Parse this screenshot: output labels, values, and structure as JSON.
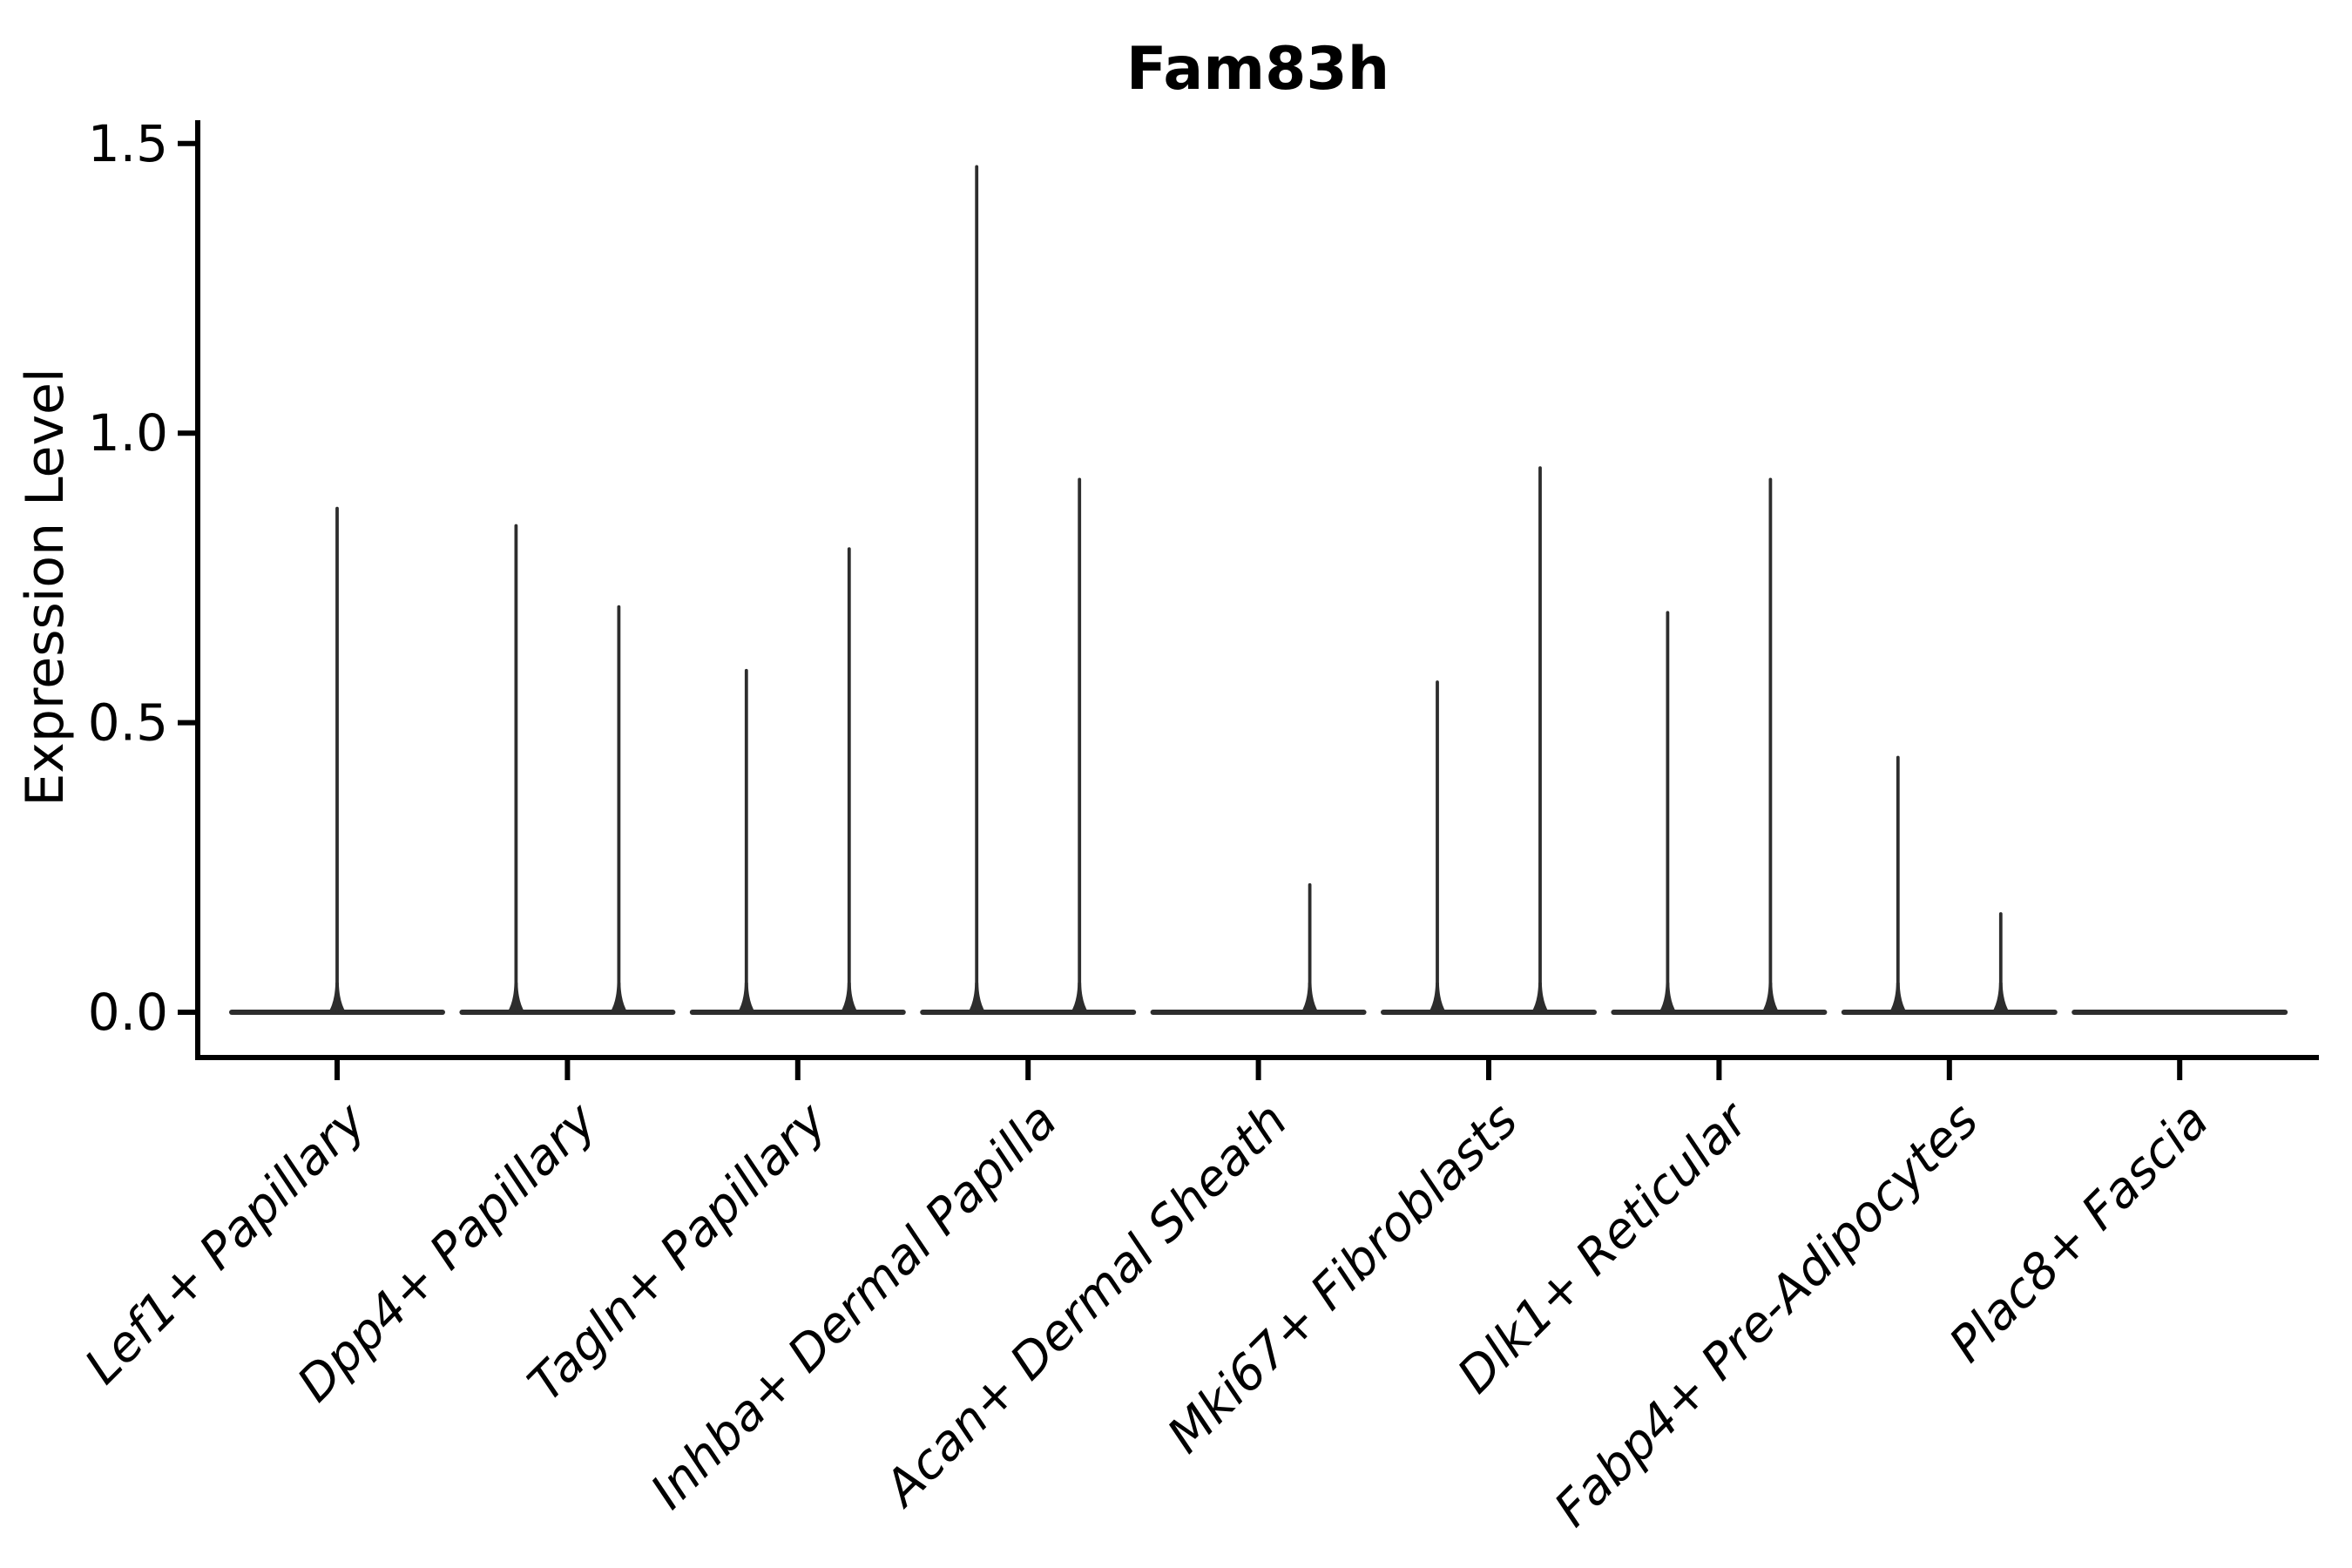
{
  "chart_data": {
    "type": "violin",
    "title": "Fam83h",
    "xlabel": "",
    "ylabel": "Expression Level",
    "ylim": [
      0,
      1.5
    ],
    "yticks": [
      "0.0",
      "0.5",
      "1.0",
      "1.5"
    ],
    "ytick_values": [
      0.0,
      0.5,
      1.0,
      1.5
    ],
    "grid": false,
    "legend": null,
    "shape_note": "Each violin is collapsed at 0: a wide flat base on the zero line with thin vertical spike(s) rising to the maximum expression value.",
    "categories": [
      "Lef1+ Papillary",
      "Dpp4+ Papillary",
      "Tagln+ Papillary",
      "Inhba+ Dermal Papilla",
      "Acan+ Dermal Sheath",
      "Mki67+ Fibroblasts",
      "Dlk1+ Reticular",
      "Fabp4+ Pre-Adipocytes",
      "Plac8+ Fascia"
    ],
    "violins": [
      {
        "category": "Lef1+ Papillary",
        "spikes": [
          {
            "slot": "center",
            "max": 0.87
          }
        ]
      },
      {
        "category": "Dpp4+ Papillary",
        "spikes": [
          {
            "slot": "left",
            "max": 0.84
          },
          {
            "slot": "right",
            "max": 0.7
          }
        ]
      },
      {
        "category": "Tagln+ Papillary",
        "spikes": [
          {
            "slot": "left",
            "max": 0.59
          },
          {
            "slot": "right",
            "max": 0.8
          }
        ]
      },
      {
        "category": "Inhba+ Dermal Papilla",
        "spikes": [
          {
            "slot": "left",
            "max": 1.46
          },
          {
            "slot": "right",
            "max": 0.92
          }
        ]
      },
      {
        "category": "Acan+ Dermal Sheath",
        "spikes": [
          {
            "slot": "right",
            "max": 0.22
          }
        ]
      },
      {
        "category": "Mki67+ Fibroblasts",
        "spikes": [
          {
            "slot": "left",
            "max": 0.57
          },
          {
            "slot": "right",
            "max": 0.94
          }
        ]
      },
      {
        "category": "Dlk1+ Reticular",
        "spikes": [
          {
            "slot": "left",
            "max": 0.69
          },
          {
            "slot": "right",
            "max": 0.92
          }
        ]
      },
      {
        "category": "Fabp4+ Pre-Adipocytes",
        "spikes": [
          {
            "slot": "left",
            "max": 0.44
          },
          {
            "slot": "right",
            "max": 0.17
          }
        ]
      },
      {
        "category": "Plac8+ Fascia",
        "spikes": []
      }
    ],
    "colors": {
      "violin_stroke": "#2d2d2d",
      "axis": "#000000",
      "text": "#000000",
      "background": "#ffffff"
    }
  }
}
